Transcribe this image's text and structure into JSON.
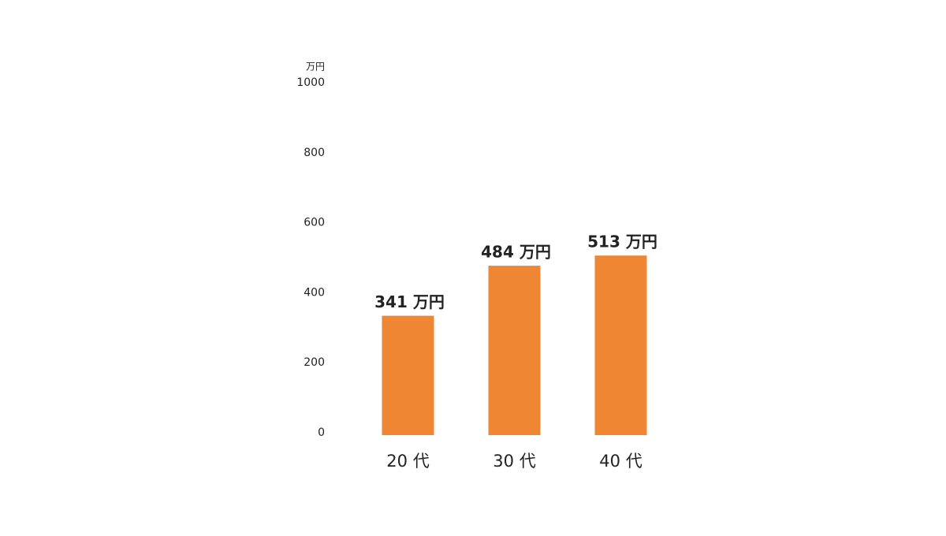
{
  "chart_data": {
    "type": "bar",
    "y_label": "万円",
    "categories": [
      "20 代",
      "30 代",
      "40 代"
    ],
    "values": [
      341,
      484,
      513
    ],
    "value_labels": [
      "341 万円",
      "484 万円",
      "513 万円"
    ],
    "color": "#ef8633",
    "ylim": [
      0,
      1000
    ],
    "yticks": [
      0,
      200,
      400,
      600,
      800,
      1000
    ],
    "grid": false
  }
}
